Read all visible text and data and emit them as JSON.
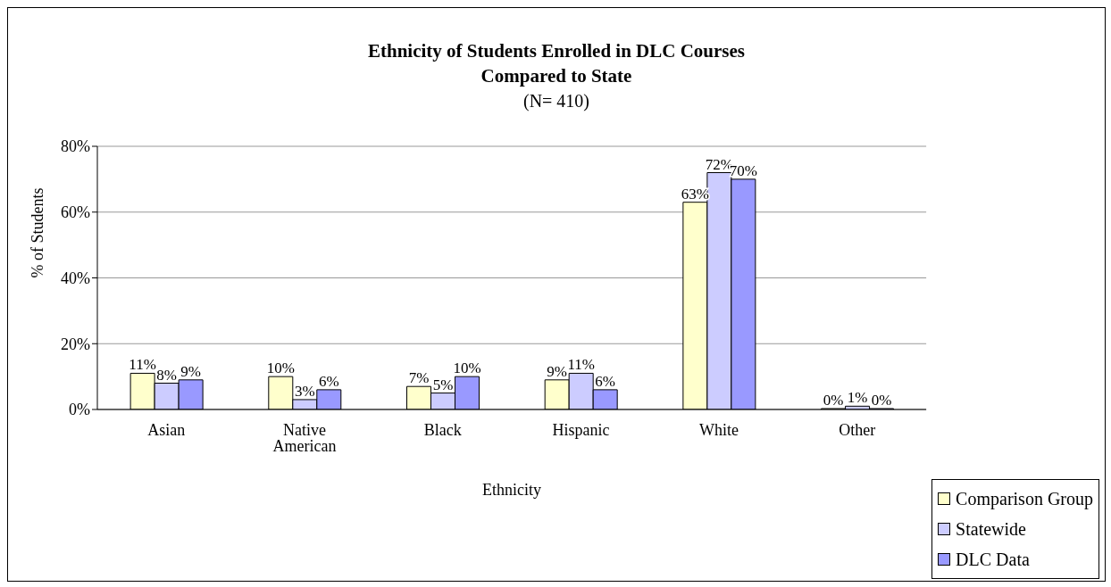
{
  "chart_data": {
    "type": "bar",
    "title": "Ethnicity of Students Enrolled in DLC Courses\nCompared to State",
    "subtitle": "(N= 410)",
    "xlabel": "Ethnicity",
    "ylabel": "% of Students",
    "categories": [
      "Asian",
      "Native American",
      "Black",
      "Hispanic",
      "White",
      "Other"
    ],
    "series": [
      {
        "name": "Comparison Group",
        "color": "#ffffcc",
        "values": [
          11,
          10,
          7,
          9,
          63,
          0
        ],
        "value_labels": [
          "11%",
          "10%",
          "7%",
          "9%",
          "63%",
          "0%"
        ]
      },
      {
        "name": "Statewide",
        "color": "#ccccff",
        "values": [
          8,
          3,
          5,
          11,
          72,
          1
        ],
        "value_labels": [
          "8%",
          "3%",
          "5%",
          "11%",
          "72%",
          "1%"
        ]
      },
      {
        "name": "DLC Data",
        "color": "#9999ff",
        "values": [
          9,
          6,
          10,
          6,
          70,
          0
        ],
        "value_labels": [
          "9%",
          "6%",
          "10%",
          "6%",
          "70%",
          "0%"
        ]
      }
    ],
    "ylim": [
      0,
      80
    ],
    "yticks": [
      {
        "value": 0,
        "label": "0%"
      },
      {
        "value": 20,
        "label": "20%"
      },
      {
        "value": 40,
        "label": "40%"
      },
      {
        "value": 60,
        "label": "60%"
      },
      {
        "value": 80,
        "label": "80%"
      }
    ],
    "grid": "y",
    "legend": "bottom right"
  }
}
